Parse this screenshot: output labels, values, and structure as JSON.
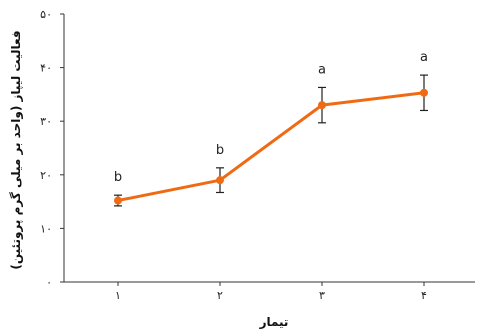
{
  "chart_data": {
    "type": "line",
    "title": "",
    "xlabel": "تیمار",
    "ylabel": "فعالیت لیپاز (واحد بر میلی گرم پروتئین)",
    "categories": [
      "۱",
      "۲",
      "۳",
      "۴"
    ],
    "y_ticks": [
      {
        "value": 0,
        "label": "۰"
      },
      {
        "value": 10,
        "label": "۱۰"
      },
      {
        "value": 20,
        "label": "۲۰"
      },
      {
        "value": 30,
        "label": "۳۰"
      },
      {
        "value": 40,
        "label": "۴۰"
      },
      {
        "value": 50,
        "label": "۵۰"
      }
    ],
    "ylim": [
      0,
      50
    ],
    "grid": false,
    "series": [
      {
        "values": [
          15.2,
          19.0,
          33.0,
          35.3
        ],
        "errors": [
          1.0,
          2.3,
          3.3,
          3.3
        ],
        "significance": [
          "b",
          "b",
          "a",
          "a"
        ],
        "color": "#f06a14"
      }
    ]
  }
}
